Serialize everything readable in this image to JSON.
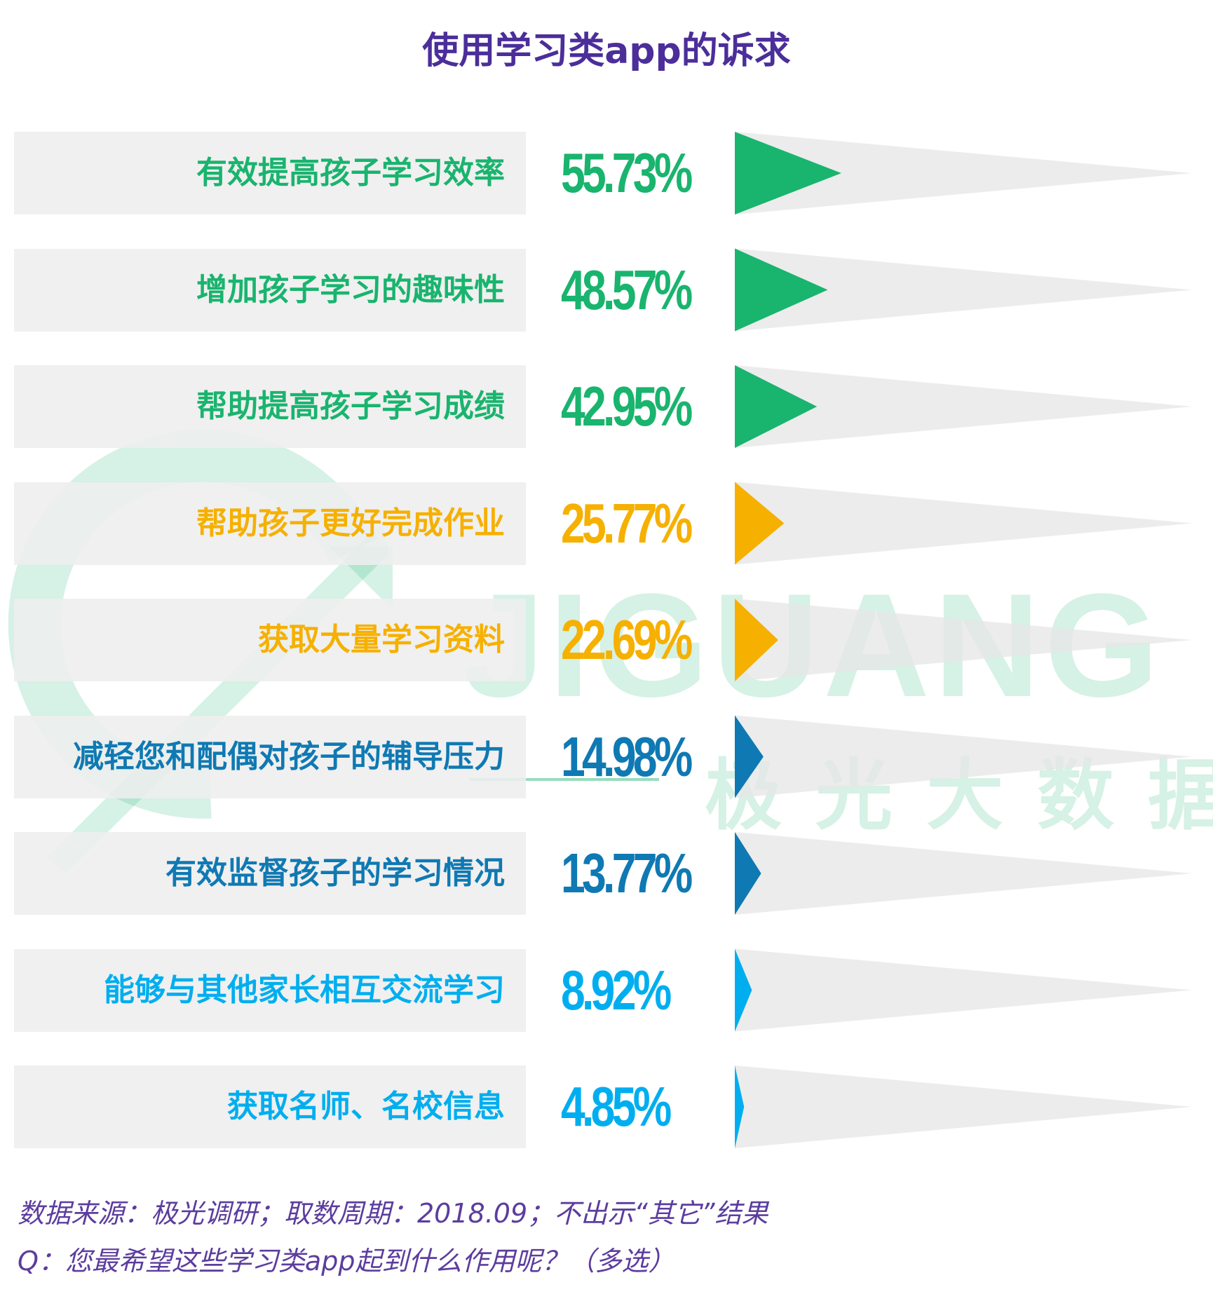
{
  "title": "使用学习类app的诉求",
  "watermark": {
    "en": "JIGUANG",
    "cn": "极光大数据"
  },
  "colors": {
    "title": "#4b2e9a",
    "green": "#19b46e",
    "orange": "#f6b000",
    "darkblue": "#0f79b3",
    "lightblue": "#00aeef",
    "track": "#eeeeee",
    "footer": "#5c3d9e"
  },
  "chart_data": {
    "type": "bar",
    "title": "使用学习类app的诉求",
    "unit": "%",
    "max": 100,
    "categories": [
      "有效提高孩子学习效率",
      "增加孩子学习的趣味性",
      "帮助提高孩子学习成绩",
      "帮助孩子更好完成作业",
      "获取大量学习资料",
      "减轻您和配偶对孩子的辅导压力",
      "有效监督孩子的学习情况",
      "能够与其他家长相互交流学习",
      "获取名师、名校信息"
    ],
    "values": [
      55.73,
      48.57,
      42.95,
      25.77,
      22.69,
      14.98,
      13.77,
      8.92,
      4.85
    ],
    "labels": [
      "55.73%",
      "48.57%",
      "42.95%",
      "25.77%",
      "22.69%",
      "14.98%",
      "13.77%",
      "8.92%",
      "4.85%"
    ],
    "bar_colors": [
      "#19b46e",
      "#19b46e",
      "#19b46e",
      "#f6b000",
      "#f6b000",
      "#0f79b3",
      "#0f79b3",
      "#00aeef",
      "#00aeef"
    ]
  },
  "footer": {
    "source": "数据来源：极光调研；取数周期：2018.09；不出示“其它”结果",
    "question": "Q：您最希望这些学习类app起到什么作用呢？（多选）"
  }
}
